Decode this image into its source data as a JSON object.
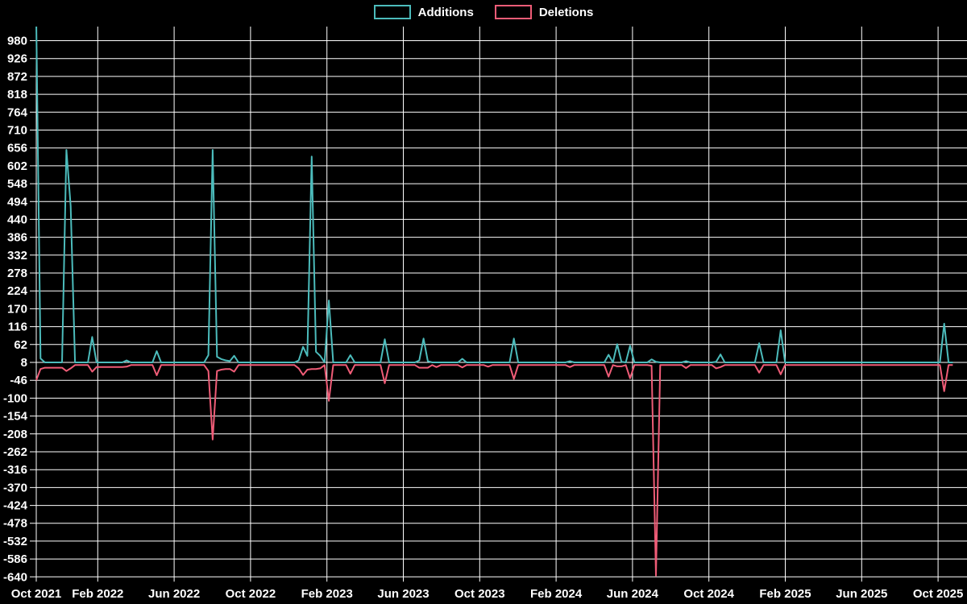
{
  "legend": {
    "items": [
      {
        "label": "Additions",
        "color": "#4cbcbc"
      },
      {
        "label": "Deletions",
        "color": "#ef5c77"
      }
    ]
  },
  "chart_data": {
    "type": "line",
    "grid": true,
    "background": "#000000",
    "axis_color": "#ffffff",
    "legend_position": "top-center",
    "x_ticks": [
      "Oct 2021",
      "Feb 2022",
      "Jun 2022",
      "Oct 2022",
      "Feb 2023",
      "Jun 2023",
      "Oct 2023",
      "Feb 2024",
      "Jun 2024",
      "Oct 2024",
      "Feb 2025",
      "Jun 2025",
      "Oct 2025"
    ],
    "y_ticks": [
      980,
      926,
      872,
      818,
      764,
      710,
      656,
      602,
      548,
      494,
      440,
      386,
      332,
      278,
      224,
      170,
      116,
      62,
      8,
      -46,
      -100,
      -154,
      -208,
      -262,
      -316,
      -370,
      -424,
      -478,
      -532,
      -586,
      -640
    ],
    "y_tick_step": 54,
    "ylim": [
      -658,
      1038
    ],
    "x_unit": "week",
    "n_weeks": 214,
    "series": [
      {
        "name": "Additions",
        "color": "#4cbcbc",
        "baseline": 8,
        "points": {
          "0": 1040,
          "1": 20,
          "7": 650,
          "8": 480,
          "13": 85,
          "21": 14,
          "28": 42,
          "40": 30,
          "41": 650,
          "42": 25,
          "43": 18,
          "44": 14,
          "45": 12,
          "46": 28,
          "61": 14,
          "62": 55,
          "63": 28,
          "64": 630,
          "65": 40,
          "66": 28,
          "68": 195,
          "73": 30,
          "81": 78,
          "89": 14,
          "90": 80,
          "91": 12,
          "99": 19,
          "111": 80,
          "124": 12,
          "133": 31,
          "135": 63,
          "136": 10,
          "138": 58,
          "143": 17,
          "144": 10,
          "151": 12,
          "158": 10,
          "159": 32,
          "168": 66,
          "173": 105,
          "211": 125
        }
      },
      {
        "name": "Deletions",
        "color": "#ef5c77",
        "baseline": 0,
        "points": {
          "0": -46,
          "1": -12,
          "2": -8,
          "3": -8,
          "4": -8,
          "5": -8,
          "6": -8,
          "7": -18,
          "8": -10,
          "13": -20,
          "14": -6,
          "15": -6,
          "16": -6,
          "17": -6,
          "18": -6,
          "19": -6,
          "20": -6,
          "21": -5,
          "28": -31,
          "40": -18,
          "41": -225,
          "42": -18,
          "43": -14,
          "44": -12,
          "45": -12,
          "46": -20,
          "61": -10,
          "62": -30,
          "63": -14,
          "64": -12,
          "65": -12,
          "66": -10,
          "68": -108,
          "73": -26,
          "81": -55,
          "89": -8,
          "90": -8,
          "91": -8,
          "93": -6,
          "99": -7,
          "105": -5,
          "111": -42,
          "124": -6,
          "133": -35,
          "135": -4,
          "136": -4,
          "138": -40,
          "143": -2,
          "144": -636,
          "145": 0,
          "151": -9,
          "158": -10,
          "159": -6,
          "168": -23,
          "173": -28,
          "211": -79
        }
      }
    ]
  }
}
